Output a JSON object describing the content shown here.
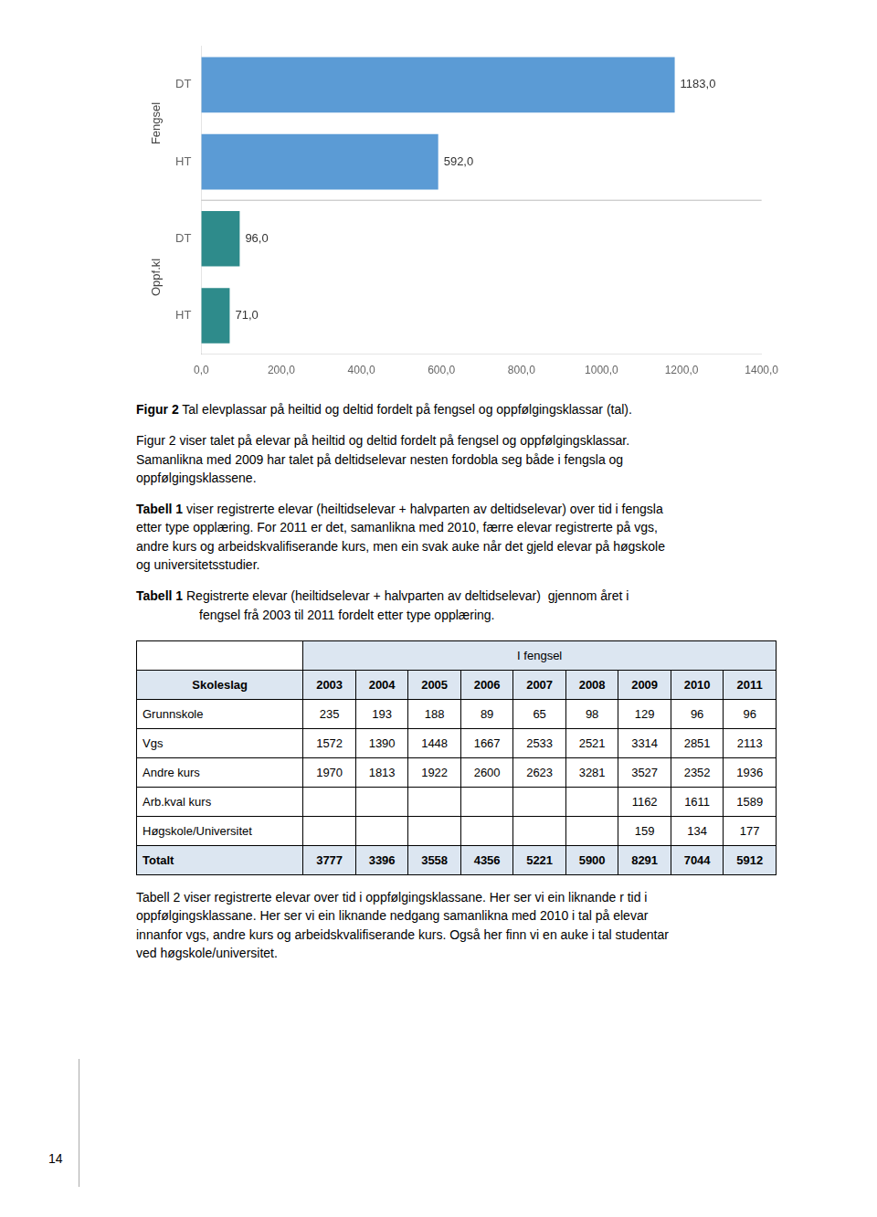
{
  "chart_data": {
    "type": "bar",
    "orientation": "horizontal",
    "categories": [
      "DT",
      "HT",
      "DT",
      "HT"
    ],
    "groups": [
      "Fengsel",
      "Fengsel",
      "Oppf.kl",
      "Oppf.kl"
    ],
    "values": [
      1183.0,
      592.0,
      96.0,
      71.0
    ],
    "value_labels": [
      "1183,0",
      "592,0",
      "96,0",
      "71,0"
    ],
    "colors": [
      "#5b9bd5",
      "#5b9bd5",
      "#2e8b8b",
      "#2e8b8b"
    ],
    "data_labels": true,
    "xlim": [
      0,
      1400
    ],
    "xticks": [
      {
        "value": 0,
        "label": "0,0"
      },
      {
        "value": 200,
        "label": "200,0"
      },
      {
        "value": 400,
        "label": "400,0"
      },
      {
        "value": 600,
        "label": "600,0"
      },
      {
        "value": 800,
        "label": "800,0"
      },
      {
        "value": 1000,
        "label": "1000,0"
      },
      {
        "value": 1200,
        "label": "1200,0"
      },
      {
        "value": 1400,
        "label": "1400,0"
      }
    ],
    "grid": false
  },
  "figure_caption": [
    "Figur 2",
    "Tal elevplassar på heiltid og deltid fordelt på fengsel og oppfølgingsklassar (tal)."
  ],
  "figure_paragraph": "Figur 2 viser talet på elevar på heiltid og deltid fordelt på fengsel og oppfølgingsklassar.\nSamanlikna med 2009 har talet på deltidselevar nesten fordobla seg både i fengsla og\noppfølgingsklassene.",
  "table_intro": [
    "Tabell 1",
    "viser registrerte elevar (heiltidselevar + halvparten av deltidselevar) over tid i fengsla\netter type opplæring. For 2011 er det, samanlikna med 2010, færre elevar registrerte på vgs,\nandre kurs og arbeidskvalifiserande kurs, men ein svak auke når det gjeld elevar på høgskole\nog universitetsstudier."
  ],
  "table_caption": [
    "Tabell 1",
    "Registrerte elevar (heiltidselevar + halvparten av deltidselevar)  gjennom året i",
    "fengsel frå 2003 til 2011 fordelt etter type opplæring."
  ],
  "table": {
    "header_top": "I fengsel",
    "columns": [
      "Skoleslag",
      "2003",
      "2004",
      "2005",
      "2006",
      "2007",
      "2008",
      "2009",
      "2010",
      "2011"
    ],
    "rows": [
      [
        "Grunnskole",
        235,
        193,
        188,
        89,
        65,
        98,
        129,
        96,
        96
      ],
      [
        "Vgs",
        1572,
        1390,
        1448,
        1667,
        2533,
        2521,
        3314,
        2851,
        2113
      ],
      [
        "Andre kurs",
        1970,
        1813,
        1922,
        2600,
        2623,
        3281,
        3527,
        2352,
        1936
      ],
      [
        "Arb.kval kurs",
        null,
        null,
        null,
        null,
        null,
        null,
        1162,
        1611,
        1589
      ],
      [
        "Høgskole/Universitet",
        null,
        null,
        null,
        null,
        null,
        null,
        159,
        134,
        177
      ],
      [
        "Totalt",
        3777,
        3396,
        3558,
        4356,
        5221,
        5900,
        8291,
        7044,
        5912
      ]
    ],
    "color": "#dce6f1"
  },
  "closing_paragraph": "Tabell 2 viser registrerte elevar over tid i oppfølgingsklassane. Her ser vi ein liknande r tid i\noppfølgingsklassane. Her ser vi ein liknande nedgang samanlikna med 2010 i tal på elevar\ninnanfor vgs, andre kurs og arbeidskvalifiserande kurs. Også her finn vi en auke i tal studentar\nved høgskole/universitet.",
  "page_number": "14"
}
